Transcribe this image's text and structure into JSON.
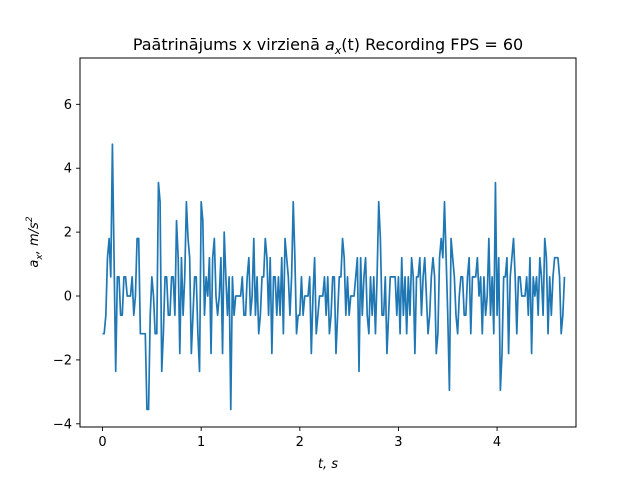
{
  "chart_data": {
    "type": "line",
    "title_main": "Paātrinājums x virzienā ",
    "title_math": "a",
    "title_math_sub": "x",
    "title_math_arg": "(t)",
    "title_suffix": " Recording FPS = 60",
    "xlabel_var": "t",
    "xlabel_sep": ", ",
    "xlabel_unit": "s",
    "ylabel_var": "a",
    "ylabel_sub": "x",
    "ylabel_sep": ", ",
    "ylabel_unit": "m/s",
    "ylabel_unit_sup": "2",
    "xlim": [
      -0.2286,
      4.8002
    ],
    "ylim": [
      -4.1,
      7.45
    ],
    "xticks": [
      0,
      1,
      2,
      3,
      4
    ],
    "xtick_labels": [
      "0",
      "1",
      "2",
      "3",
      "4"
    ],
    "yticks": [
      -4,
      -2,
      0,
      2,
      4,
      6
    ],
    "ytick_labels": [
      "−4",
      "−2",
      "0",
      "2",
      "4",
      "6"
    ],
    "grid": false,
    "line_color": "#1f77b4",
    "series": [
      {
        "x_start": 0,
        "x_step": 0.016667,
        "values": [
          -1.18,
          -1.18,
          -0.6,
          1.2,
          1.8,
          0.6,
          4.75,
          1.2,
          -2.36,
          0.6,
          0.6,
          -0.6,
          -0.6,
          0.6,
          0.6,
          0,
          0,
          0,
          0.6,
          -0.6,
          0,
          1.8,
          1.8,
          -1.18,
          -1.18,
          -1.18,
          -1.18,
          -3.55,
          -3.55,
          -0.6,
          0.6,
          0,
          -1.18,
          -1.18,
          3.55,
          2.95,
          -2.36,
          -1.18,
          0.6,
          0.6,
          -0.6,
          -0.6,
          0.6,
          0.6,
          -0.6,
          2.36,
          1.2,
          -1.8,
          1.2,
          -0.6,
          0.6,
          2.95,
          1.8,
          1.2,
          -1.8,
          -0.6,
          0.6,
          0.6,
          -1.18,
          -2.36,
          2.95,
          2.36,
          -0.6,
          0.6,
          0,
          1.2,
          -1.8,
          1.2,
          1.8,
          0,
          -0.6,
          0,
          1.2,
          -1.8,
          2.0,
          0.6,
          -0.6,
          0.6,
          -3.55,
          0.6,
          -0.6,
          0,
          0,
          0,
          0,
          0.6,
          -0.6,
          -0.6,
          0.6,
          1.2,
          -0.6,
          0,
          1.8,
          -0.6,
          0.6,
          -1.18,
          -0.6,
          0.6,
          0.6,
          1.8,
          1.2,
          -0.6,
          1.2,
          -1.8,
          0.6,
          0.6,
          -0.6,
          0.6,
          -0.6,
          1.2,
          -1.18,
          1.8,
          1.2,
          0.6,
          -0.6,
          0.6,
          2.95,
          1.2,
          -1.18,
          -0.6,
          -0.6,
          0.6,
          -0.6,
          0,
          0,
          0,
          0.6,
          -1.8,
          0,
          1.2,
          -1.18,
          -0.6,
          0,
          0,
          0,
          0.6,
          -0.6,
          0.6,
          -1.18,
          -0.6,
          0.6,
          0.6,
          -1.8,
          -0.6,
          0.6,
          0.6,
          1.8,
          1.2,
          -0.6,
          0.6,
          -0.6,
          0,
          0,
          0,
          0.6,
          1.2,
          -2.36,
          1.2,
          -0.6,
          0.6,
          1.2,
          -0.6,
          -1.18,
          0.6,
          -0.6,
          0.6,
          -1.18,
          0.6,
          2.95,
          1.8,
          -0.6,
          -0.6,
          0.6,
          -1.8,
          -0.6,
          0.6,
          0.6,
          0.6,
          0.6,
          -0.6,
          0.6,
          -1.18,
          1.2,
          -0.6,
          0.6,
          -1.18,
          0.6,
          -0.6,
          1.2,
          0.6,
          -1.8,
          0.6,
          0.6,
          1.2,
          -0.6,
          0.6,
          1.2,
          0,
          -1.18,
          -0.6,
          0.6,
          1.2,
          0.6,
          -1.8,
          -1.18,
          1.2,
          1.8,
          1.2,
          2.95,
          1.2,
          -0.6,
          -2.95,
          1.8,
          1.2,
          0.6,
          -0.6,
          -1.18,
          0,
          0.6,
          0.6,
          -0.6,
          -0.6,
          0.6,
          1.2,
          -1.18,
          0.6,
          0.6,
          0.6,
          1.2,
          0,
          0.6,
          -1.18,
          0.6,
          -0.6,
          0,
          1.8,
          -0.6,
          0.6,
          -1.18,
          3.55,
          -0.6,
          1.2,
          -2.95,
          -1.8,
          0.6,
          0.6,
          1.2,
          -1.8,
          0.6,
          1.2,
          1.8,
          0.6,
          -1.18,
          0.6,
          0.6,
          0,
          0,
          0,
          0.6,
          -0.6,
          1.2,
          -1.8,
          0.6,
          0,
          0.6,
          -0.6,
          1.2,
          0.6,
          -0.6,
          1.8,
          1.2,
          -1.18,
          0.6,
          -0.6,
          0.6,
          1.2,
          1.2,
          1.2,
          0.6,
          -1.18,
          -0.6,
          0.6
        ]
      }
    ]
  }
}
